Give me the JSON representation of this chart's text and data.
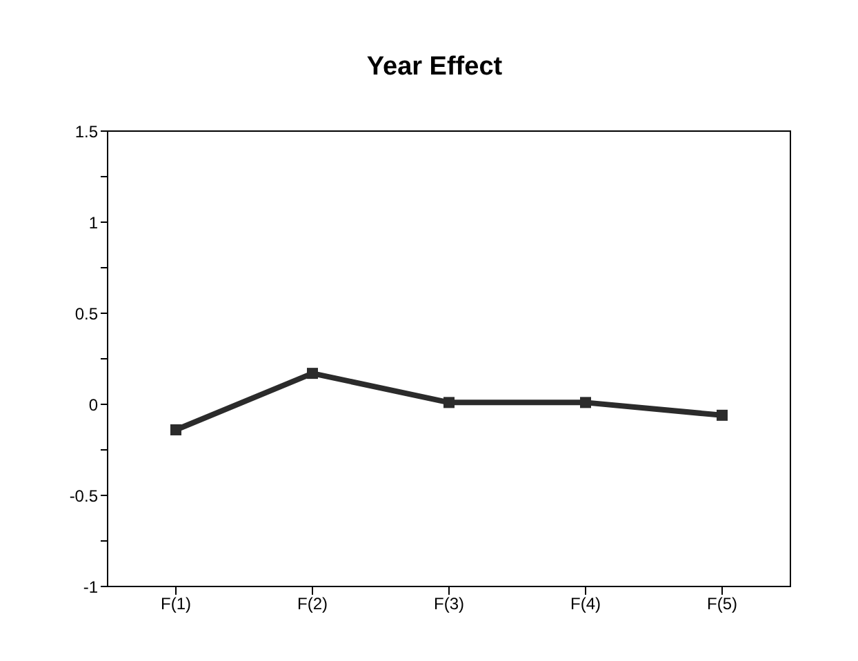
{
  "chart_data": {
    "type": "line",
    "title": "Year Effect",
    "categories": [
      "F(1)",
      "F(2)",
      "F(3)",
      "F(4)",
      "F(5)"
    ],
    "series": [
      {
        "color": "#2b2b2b",
        "values": [
          -0.14,
          0.17,
          0.01,
          0.01,
          -0.06
        ]
      }
    ],
    "ylim": [
      -1,
      1.5
    ],
    "yticks": [
      -1,
      {
        "value": -0.75,
        "label": null
      },
      -0.5,
      {
        "value": -0.25,
        "label": null
      },
      0,
      {
        "value": 0.25,
        "label": null
      },
      0.5,
      {
        "value": 0.75,
        "label": null
      },
      1,
      {
        "value": 1.25,
        "label": null
      },
      1.5
    ],
    "marker": "square",
    "line_style": "solid",
    "grid": false,
    "legend": false
  }
}
